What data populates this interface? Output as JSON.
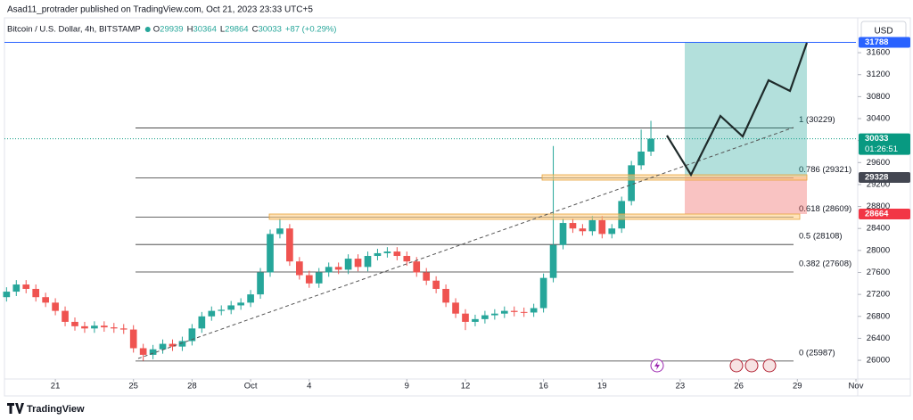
{
  "header": {
    "publisher": "Asad11_protrader published on TradingView.com, Oct 21, 2023 23:33 UTC+5",
    "currency": "USD",
    "brand": "TradingView"
  },
  "chart_data": {
    "type": "candlestick",
    "legend": {
      "symbol": "Bitcoin / U.S. Dollar, 4h, BITSTAMP",
      "ohlc": [
        {
          "label": "O",
          "value": 29939
        },
        {
          "label": "H",
          "value": 30364
        },
        {
          "label": "L",
          "value": 29864
        },
        {
          "label": "C",
          "value": 30033
        }
      ],
      "change": "+87 (+0.29%)"
    },
    "up_color": "#26a69a",
    "down_color": "#ef5350",
    "x": [
      -2.5,
      -2,
      -1.5,
      -1,
      -0.5,
      0,
      0.5,
      1,
      1.5,
      2,
      2.5,
      3,
      3.5,
      4,
      4.5,
      5,
      5.5,
      6,
      6.5,
      7,
      7.5,
      8,
      8.5,
      9,
      9.5,
      10,
      10.5,
      11,
      11.5,
      12,
      12.5,
      13,
      13.5,
      14,
      14.5,
      15,
      15.5,
      16,
      16.5,
      17,
      17.5,
      18,
      18.5,
      19,
      19.5,
      20,
      20.5,
      21,
      21.5,
      22,
      22.5,
      23,
      23.5,
      24,
      24.5,
      25,
      25.5,
      26,
      26.5,
      27,
      27.5,
      28,
      28.5,
      29,
      29.5,
      30,
      30.5
    ],
    "open": [
      27150,
      27250,
      27380,
      27300,
      27150,
      27050,
      26900,
      26700,
      26620,
      26580,
      26630,
      26600,
      26580,
      26560,
      26220,
      26100,
      26200,
      26300,
      26250,
      26350,
      26580,
      26800,
      26900,
      26920,
      27000,
      27050,
      27200,
      27600,
      28300,
      28400,
      27800,
      27550,
      27400,
      27600,
      27700,
      27650,
      27850,
      27700,
      27900,
      27950,
      27980,
      27900,
      27800,
      27600,
      27450,
      27300,
      27050,
      26850,
      26700,
      26750,
      26820,
      26850,
      26900,
      26880,
      26870,
      26950,
      27500,
      28100,
      28500,
      28400,
      28350,
      28550,
      28300,
      28400,
      28900,
      29550,
      29800
    ],
    "high": [
      27330,
      27460,
      27460,
      27380,
      27230,
      27130,
      26980,
      26780,
      26700,
      26710,
      26710,
      26680,
      26660,
      26640,
      26300,
      26280,
      26380,
      26380,
      26430,
      26660,
      26880,
      26980,
      27000,
      27080,
      27130,
      27280,
      27680,
      28380,
      28580,
      28480,
      27880,
      27630,
      27680,
      27780,
      27780,
      27930,
      27930,
      27980,
      28030,
      28060,
      28060,
      27980,
      27880,
      27680,
      27530,
      27380,
      27130,
      26930,
      26830,
      26900,
      26930,
      26980,
      26980,
      26960,
      27030,
      27580,
      29900,
      28580,
      28580,
      28480,
      28630,
      28630,
      28480,
      28980,
      29630,
      30200,
      30360
    ],
    "low": [
      27070,
      27170,
      27220,
      27070,
      26970,
      26820,
      26620,
      26540,
      26500,
      26500,
      26520,
      26500,
      26480,
      26140,
      25990,
      26020,
      26120,
      26170,
      26170,
      26270,
      26500,
      26720,
      26820,
      26840,
      26920,
      26970,
      27120,
      27520,
      28220,
      27720,
      27470,
      27320,
      27320,
      27520,
      27570,
      27570,
      27620,
      27620,
      27820,
      27870,
      27820,
      27720,
      27520,
      27370,
      27220,
      26970,
      26770,
      26550,
      26620,
      26670,
      26740,
      26770,
      26800,
      26790,
      26790,
      26870,
      27420,
      28020,
      28320,
      28270,
      28270,
      28220,
      28220,
      28320,
      28820,
      29470,
      29720
    ],
    "close": [
      27250,
      27380,
      27300,
      27150,
      27050,
      26900,
      26700,
      26620,
      26580,
      26630,
      26600,
      26580,
      26560,
      26220,
      26100,
      26200,
      26300,
      26250,
      26350,
      26580,
      26800,
      26900,
      26920,
      27000,
      27050,
      27200,
      27600,
      28300,
      28400,
      27800,
      27550,
      27400,
      27600,
      27700,
      27650,
      27850,
      27700,
      27900,
      27950,
      27980,
      27900,
      27800,
      27600,
      27450,
      27300,
      27050,
      26850,
      26700,
      26750,
      26820,
      26850,
      26900,
      26880,
      26870,
      26950,
      27500,
      28100,
      28500,
      28400,
      28350,
      28550,
      28300,
      28400,
      28900,
      29550,
      29800,
      30033
    ],
    "xlim": [
      -2.47,
      41
    ],
    "xticks": [
      {
        "value": 0,
        "label": "21"
      },
      {
        "value": 4,
        "label": "25"
      },
      {
        "value": 7,
        "label": "28"
      },
      {
        "value": 10,
        "label": "Oct"
      },
      {
        "value": 13,
        "label": "4"
      },
      {
        "value": 18,
        "label": "9"
      },
      {
        "value": 21,
        "label": "12"
      },
      {
        "value": 25,
        "label": "16"
      },
      {
        "value": 28,
        "label": "19"
      },
      {
        "value": 32,
        "label": "23"
      },
      {
        "value": 35,
        "label": "26"
      },
      {
        "value": 38,
        "label": "29"
      },
      {
        "value": 41,
        "label": "Nov"
      }
    ],
    "ylim": [
      25660,
      31780
    ],
    "yticks": [
      26000,
      26400,
      26800,
      27200,
      27600,
      28000,
      28400,
      28800,
      29200,
      29600,
      30000,
      30400,
      30800,
      31200,
      31600
    ],
    "fib_levels": [
      {
        "value": 30229,
        "label": "1 (30229)"
      },
      {
        "value": 29321,
        "label": "0.786 (29321)"
      },
      {
        "value": 28609,
        "label": "0.618 (28609)"
      },
      {
        "value": 28108,
        "label": "0.5 (28108)"
      },
      {
        "value": 27608,
        "label": "0.382 (27608)"
      },
      {
        "value": 25987,
        "label": "0 (25987)"
      }
    ],
    "price_labels": [
      {
        "value": 31788,
        "color": "#2962ff"
      },
      {
        "value": 30033,
        "color": "#089981",
        "countdown": "01:26:51"
      },
      {
        "value": 29328,
        "color": "#434651"
      },
      {
        "value": 28664,
        "color": "#f23645"
      }
    ]
  }
}
